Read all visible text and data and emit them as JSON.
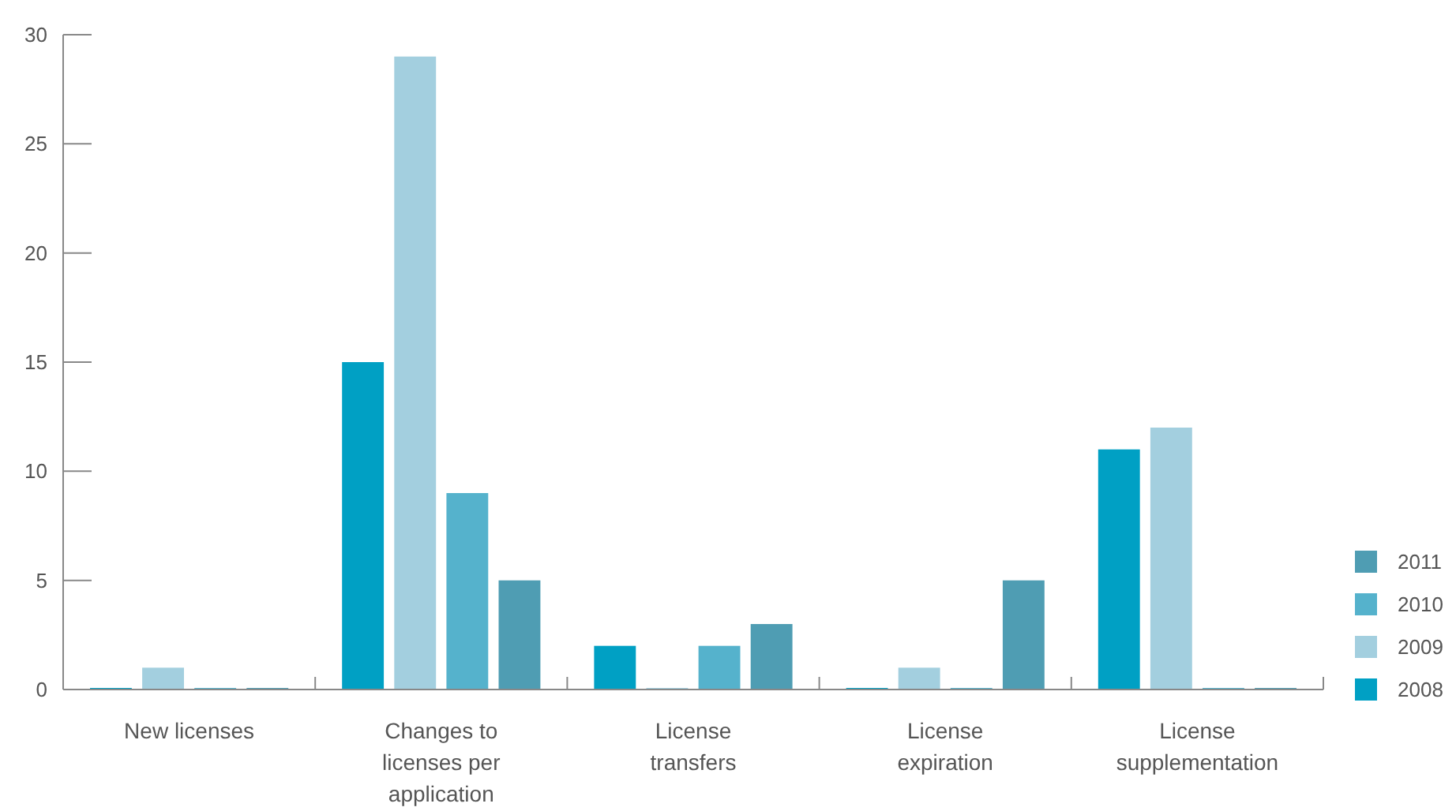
{
  "chart_data": {
    "type": "bar",
    "categories": [
      "New licenses",
      "Changes to licenses per application",
      "License transfers",
      "License expiration",
      "License supplementation"
    ],
    "series": [
      {
        "name": "2008",
        "color": "#00a0c4",
        "values": [
          0,
          15,
          2,
          0,
          11
        ]
      },
      {
        "name": "2009",
        "color": "#a3cfdf",
        "values": [
          1,
          29,
          0,
          1,
          12
        ]
      },
      {
        "name": "2010",
        "color": "#55b2cc",
        "values": [
          0,
          9,
          2,
          0,
          0
        ]
      },
      {
        "name": "2011",
        "color": "#4f9db3",
        "values": [
          0,
          5,
          3,
          5,
          0
        ]
      }
    ],
    "ylim": [
      0,
      30
    ],
    "yticks": [
      0,
      5,
      10,
      15,
      20,
      25,
      30
    ],
    "grid": false,
    "legend": "bottom right"
  }
}
